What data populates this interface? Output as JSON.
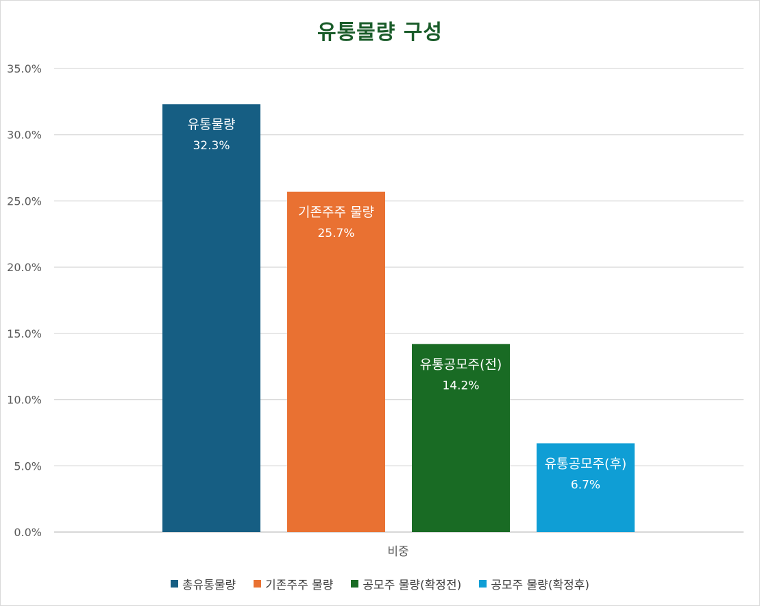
{
  "chart_data": {
    "type": "bar",
    "title": "유통물량 구성",
    "xlabel": "비중",
    "ylabel": "",
    "ylim": [
      0,
      35
    ],
    "yticks": [
      "0.0%",
      "5.0%",
      "10.0%",
      "15.0%",
      "20.0%",
      "25.0%",
      "30.0%",
      "35.0%"
    ],
    "grid": true,
    "legend_position": "bottom",
    "series": [
      {
        "name": "총유통물량",
        "bar_label": "유통물량",
        "value": 32.3,
        "value_label": "32.3%",
        "color": "#165e83"
      },
      {
        "name": "기존주주 물량",
        "bar_label": "기존주주 물량",
        "value": 25.7,
        "value_label": "25.7%",
        "color": "#e97132"
      },
      {
        "name": "공모주 물량(확정전)",
        "bar_label": "유통공모주(전)",
        "value": 14.2,
        "value_label": "14.2%",
        "color": "#196b24"
      },
      {
        "name": "공모주 물량(확정후)",
        "bar_label": "유통공모주(후)",
        "value": 6.7,
        "value_label": "6.7%",
        "color": "#0f9ed5"
      }
    ]
  }
}
